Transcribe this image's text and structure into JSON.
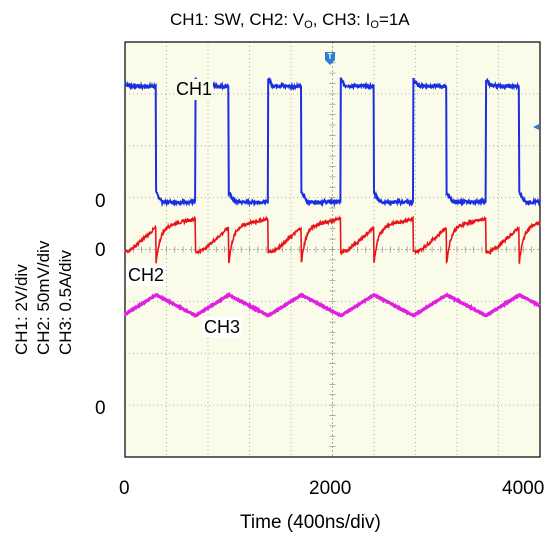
{
  "title": {
    "pre": "CH1: SW, CH2: V",
    "sub1": "O",
    "mid": ", CH3: I",
    "sub2": "O",
    "post": "=1A"
  },
  "y_labels": [
    "CH1: 2V/div",
    "CH2: 50mV/div",
    "CH3: 0.5A/div"
  ],
  "xlabel": "Time (400ns/div)",
  "xticks": [
    "0",
    "2000",
    "4000"
  ],
  "zero_marks": [
    "0",
    "0",
    "0"
  ],
  "trace_labels": {
    "ch1": "CH1",
    "ch2": "CH2",
    "ch3": "CH3"
  },
  "trigger_marker": "T",
  "colors": {
    "ch1": "#1a2fe0",
    "ch2": "#e8141a",
    "ch3": "#e020e0",
    "background": "#fbfbea",
    "grid": "#9a9a9a"
  },
  "chart_data": {
    "type": "line",
    "title": "CH1: SW, CH2: VO, CH3: IO=1A",
    "xlabel": "Time (400ns/div)",
    "xlim": [
      0,
      4000
    ],
    "x_ticks": [
      0,
      2000,
      4000
    ],
    "divisions": {
      "x": 10,
      "y": 8
    },
    "grid": true,
    "switching_period_ns": 700,
    "series": [
      {
        "name": "CH1",
        "unit": "V",
        "scale_per_div": 2,
        "rising_edges_ns": [
          -20,
          680,
          1380,
          2080,
          2780,
          3480
        ],
        "falling_edges_ns": [
          300,
          1000,
          1700,
          2400,
          3100,
          3800
        ],
        "high_V": 4.5,
        "low_V": 0
      },
      {
        "name": "CH2",
        "unit": "mV",
        "scale_per_div": 50,
        "ripple_pp_mV": 45,
        "dc_offset_mV": 0
      },
      {
        "name": "CH3",
        "unit": "A",
        "scale_per_div": 0.5,
        "min_A": 0.9,
        "max_A": 1.1,
        "average_A": 1.0
      }
    ]
  }
}
